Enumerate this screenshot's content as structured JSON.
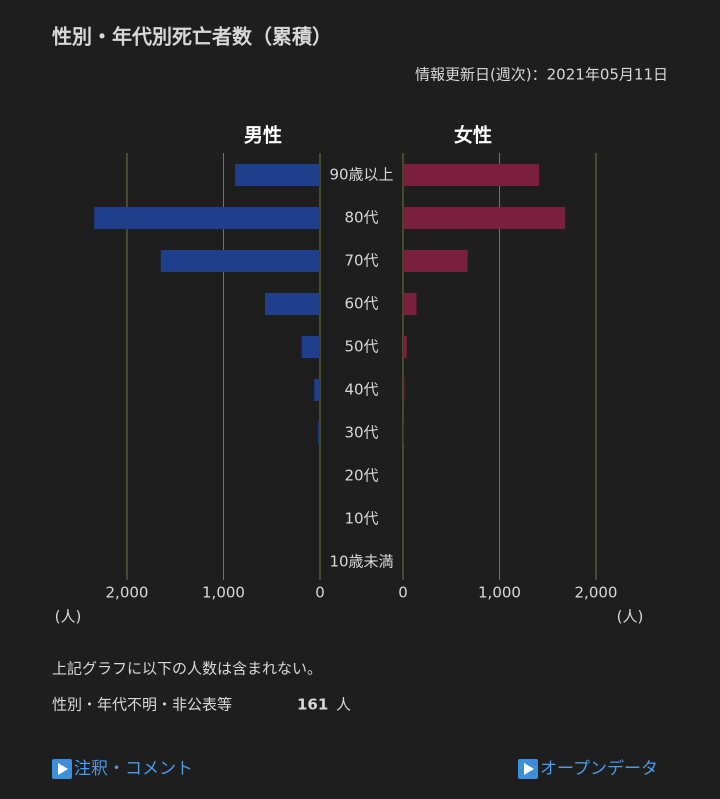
{
  "chart_data": {
    "type": "pyramid",
    "title": "性別・年代別死亡者数（累積）",
    "subtitle": "情報更新日(週次)：2021年05月11日",
    "categories": [
      "90歳以上",
      "80代",
      "70代",
      "60代",
      "50代",
      "40代",
      "30代",
      "20代",
      "10代",
      "10歳未満"
    ],
    "series": [
      {
        "name": "男性",
        "color": "#1f3f8c",
        "values": [
          880,
          2340,
          1650,
          570,
          190,
          60,
          20,
          0,
          0,
          0
        ]
      },
      {
        "name": "女性",
        "color": "#7b1f3e",
        "values": [
          1410,
          1680,
          670,
          140,
          40,
          15,
          3,
          0,
          0,
          0
        ]
      }
    ],
    "xlim": [
      0,
      2000
    ],
    "xticks": [
      {
        "value": 2000,
        "label": "2,000"
      },
      {
        "value": 1000,
        "label": "1,000"
      },
      0
    ],
    "x_unit": "(人)",
    "grid": true
  },
  "notes": {
    "text": "上記グラフに以下の人数は含まれない。",
    "unknown_label": "性別・年代不明・非公表等",
    "unknown_count": 161,
    "unknown_unit": "人"
  },
  "links": [
    "注釈・コメント",
    "オープンデータ"
  ]
}
